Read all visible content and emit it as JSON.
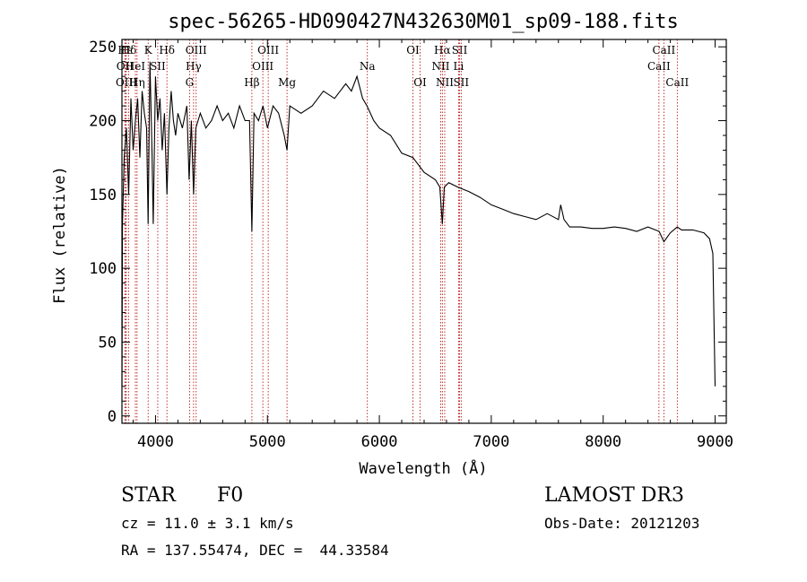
{
  "chart_data": {
    "type": "line",
    "title": "spec-56265-HD090427N432630M01_sp09-188.fits",
    "xlabel": "Wavelength (Å)",
    "ylabel": "Flux (relative)",
    "xlim": [
      3700,
      9100
    ],
    "ylim": [
      -5,
      255
    ],
    "xticks": [
      4000,
      5000,
      6000,
      7000,
      8000,
      9000
    ],
    "yticks": [
      0,
      50,
      100,
      150,
      200,
      250
    ],
    "grid": false,
    "series": [
      {
        "name": "flux",
        "x": [
          3700,
          3705,
          3720,
          3740,
          3760,
          3780,
          3800,
          3820,
          3840,
          3860,
          3880,
          3900,
          3920,
          3934,
          3950,
          3968,
          3980,
          4000,
          4020,
          4040,
          4060,
          4080,
          4102,
          4120,
          4140,
          4160,
          4180,
          4200,
          4240,
          4280,
          4300,
          4320,
          4340,
          4360,
          4380,
          4400,
          4450,
          4500,
          4550,
          4600,
          4650,
          4700,
          4750,
          4800,
          4840,
          4861,
          4880,
          4920,
          4960,
          5000,
          5050,
          5100,
          5150,
          5175,
          5200,
          5300,
          5400,
          5500,
          5600,
          5700,
          5750,
          5800,
          5850,
          5890,
          5950,
          6000,
          6100,
          6200,
          6300,
          6400,
          6500,
          6540,
          6563,
          6580,
          6620,
          6700,
          6800,
          6900,
          7000,
          7100,
          7200,
          7300,
          7400,
          7500,
          7600,
          7620,
          7650,
          7700,
          7800,
          7900,
          8000,
          8100,
          8200,
          8300,
          8400,
          8500,
          8542,
          8600,
          8662,
          8700,
          8800,
          8900,
          8950,
          8980,
          9000
        ],
        "values": [
          20,
          130,
          175,
          195,
          150,
          215,
          180,
          200,
          215,
          175,
          220,
          205,
          195,
          130,
          240,
          180,
          130,
          230,
          200,
          215,
          180,
          205,
          150,
          195,
          220,
          200,
          190,
          205,
          195,
          210,
          160,
          200,
          150,
          195,
          200,
          205,
          195,
          200,
          210,
          200,
          205,
          195,
          210,
          200,
          200,
          125,
          205,
          200,
          210,
          195,
          210,
          205,
          190,
          180,
          210,
          205,
          210,
          220,
          215,
          225,
          220,
          230,
          215,
          210,
          200,
          195,
          190,
          178,
          175,
          165,
          160,
          155,
          130,
          155,
          158,
          155,
          152,
          148,
          143,
          140,
          137,
          135,
          133,
          137,
          133,
          143,
          133,
          128,
          128,
          127,
          127,
          128,
          127,
          125,
          128,
          125,
          118,
          124,
          128,
          126,
          126,
          124,
          120,
          110,
          20
        ]
      }
    ],
    "spectral_lines": [
      {
        "label": "Hε",
        "x": 3730,
        "row": 0
      },
      {
        "label": "Hδ",
        "x": 3760,
        "row": 0
      },
      {
        "label": "K",
        "x": 3934,
        "row": 0
      },
      {
        "label": "Hδ",
        "x": 4102,
        "row": 0
      },
      {
        "label": "OII",
        "x": 3727,
        "row": 1
      },
      {
        "label": "HeI",
        "x": 3820,
        "row": 1
      },
      {
        "label": "SII",
        "x": 4020,
        "row": 1
      },
      {
        "label": "OIII",
        "x": 3740,
        "row": 2
      },
      {
        "label": "Hη",
        "x": 3835,
        "row": 2
      },
      {
        "label": "OIII",
        "x": 4363,
        "row": 0
      },
      {
        "label": "Hγ",
        "x": 4340,
        "row": 1
      },
      {
        "label": "G",
        "x": 4304,
        "row": 2
      },
      {
        "label": "OIII",
        "x": 5007,
        "row": 0
      },
      {
        "label": "OIII",
        "x": 4959,
        "row": 1
      },
      {
        "label": "Hβ",
        "x": 4861,
        "row": 2
      },
      {
        "label": "Mg",
        "x": 5175,
        "row": 2
      },
      {
        "label": "Na",
        "x": 5893,
        "row": 1
      },
      {
        "label": "OI",
        "x": 6300,
        "row": 0
      },
      {
        "label": "OI",
        "x": 6364,
        "row": 2
      },
      {
        "label": "Hα",
        "x": 6563,
        "row": 0
      },
      {
        "label": "NII",
        "x": 6548,
        "row": 1
      },
      {
        "label": "NII",
        "x": 6584,
        "row": 2
      },
      {
        "label": "SII",
        "x": 6717,
        "row": 0
      },
      {
        "label": "Li",
        "x": 6708,
        "row": 1
      },
      {
        "label": "SII",
        "x": 6731,
        "row": 2
      },
      {
        "label": "CaII",
        "x": 8542,
        "row": 0
      },
      {
        "label": "CaII",
        "x": 8498,
        "row": 1
      },
      {
        "label": "CaII",
        "x": 8662,
        "row": 2
      }
    ]
  },
  "info": {
    "object_class": "STAR",
    "subclass": "F0",
    "survey": "LAMOST DR3",
    "redshift_text": "cz = 11.0 ± 3.1 km/s",
    "obs_date_text": "Obs-Date: 20121203",
    "coords_text": "RA = 137.55474, DEC =  44.33584"
  },
  "colors": {
    "line_marker": "#b30000",
    "spectrum": "#000000"
  }
}
